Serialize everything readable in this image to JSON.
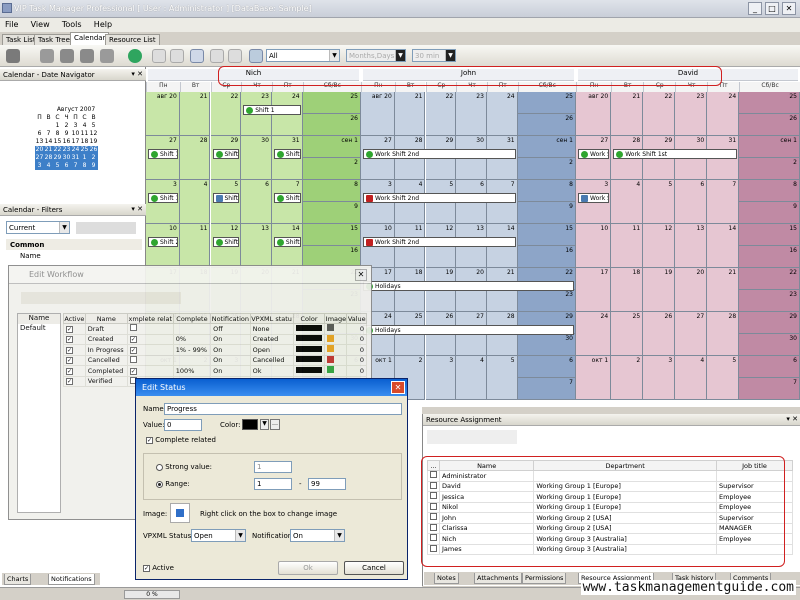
{
  "app": {
    "title": "VIP Task Manager Professional [ User : Administrator ] [DataBase: Sample]"
  },
  "menu": [
    "File",
    "View",
    "Tools",
    "Help"
  ],
  "doc_tabs": [
    "Task List",
    "Task Tree",
    "Calendar",
    "Resource List"
  ],
  "toolbar": {
    "filter_value": "All",
    "mode_value": "Months,Days",
    "interval_value": "30 min"
  },
  "left_pane": {
    "navigator_title": "Calendar - Date Navigator",
    "mini_calendar": {
      "month": "Август 2007",
      "weekdays": [
        "П",
        "В",
        "С",
        "Ч",
        "П",
        "С",
        "В"
      ],
      "weeks": [
        [
          "",
          "",
          "1",
          "2",
          "3",
          "4",
          "5"
        ],
        [
          "6",
          "7",
          "8",
          "9",
          "10",
          "11",
          "12"
        ],
        [
          "13",
          "14",
          "15",
          "16",
          "17",
          "18",
          "19"
        ],
        [
          "20",
          "21",
          "22",
          "23",
          "24",
          "25",
          "26"
        ],
        [
          "27",
          "28",
          "29",
          "30",
          "31",
          "1",
          "2"
        ],
        [
          "3",
          "4",
          "5",
          "6",
          "7",
          "8",
          "9"
        ]
      ]
    },
    "filters_title": "Calendar - Filters",
    "filter_select": "Current",
    "group_label": "Common",
    "group_item": "Name"
  },
  "calendar": {
    "resources": [
      "Nich",
      "John",
      "David"
    ],
    "day_headers": [
      "Пн",
      "Вт",
      "Ср",
      "Чт",
      "Пт",
      "Сб/Вс"
    ],
    "resource_colors": [
      "#c8e6a8",
      "#c6d2e2",
      "#e6c6d2"
    ],
    "weekend_colors": [
      "#9ed078",
      "#8da5c8",
      "#c08aa4"
    ],
    "rows": [
      [
        "авг 20",
        "21",
        "22",
        "23",
        "24",
        "25",
        "26"
      ],
      [
        "27",
        "28",
        "29",
        "30",
        "31",
        "сен 1",
        "2"
      ],
      [
        "3",
        "4",
        "5",
        "6",
        "7",
        "8",
        "9"
      ],
      [
        "10",
        "11",
        "12",
        "13",
        "14",
        "15",
        "16"
      ],
      [
        "17",
        "18",
        "19",
        "20",
        "21",
        "22",
        "23"
      ],
      [
        "24",
        "25",
        "26",
        "27",
        "28",
        "29",
        "30"
      ],
      [
        "окт 1",
        "2",
        "3",
        "4",
        "5",
        "6",
        "7"
      ]
    ],
    "shifts": {
      "shift1": "Shift 1",
      "shift2": "Shift 2",
      "shift3": "Shift 3",
      "work2": "Work Shift 2nd",
      "work1": "Work Shift 1st",
      "holidays": "Holidays"
    }
  },
  "workflow": {
    "title": "Edit Workflow",
    "name_col": "Name",
    "default_name": "Default",
    "columns": [
      "Active",
      "Name",
      "Complete related",
      "Complete",
      "Notification",
      "VPXML status",
      "Color",
      "Image",
      "Value"
    ],
    "col_labels": [
      "Active",
      "Name",
      "xmplete relat",
      "Complete",
      "Notification",
      "VPXML statu",
      "Color",
      "Image",
      "Value"
    ],
    "rows": [
      {
        "name": "Draft",
        "complete": "",
        "notification": "Off",
        "status": "None",
        "value": "0"
      },
      {
        "name": "Created",
        "complete": "0%",
        "notification": "On",
        "status": "Created",
        "value": "0"
      },
      {
        "name": "In Progress",
        "complete": "1% - 99%",
        "notification": "On",
        "status": "Open",
        "value": "0"
      },
      {
        "name": "Cancelled",
        "complete": "",
        "notification": "On",
        "status": "Cancelled",
        "value": "0"
      },
      {
        "name": "Completed",
        "complete": "100%",
        "notification": "On",
        "status": "Ok",
        "value": "0"
      },
      {
        "name": "Verified",
        "complete": "",
        "notification": "",
        "status": "",
        "value": ""
      }
    ]
  },
  "edit_status": {
    "title": "Edit Status",
    "name_label": "Name",
    "name_value": "Progress",
    "value_label": "Value:",
    "value_value": "0",
    "color_label": "Color:",
    "complete_related": "Complete related",
    "strong_value": "Strong value:",
    "strong_value_value": "1",
    "range_label": "Range:",
    "range_from": "1",
    "range_sep": "-",
    "range_to": "99",
    "image_label": "Image:",
    "image_hint": "Right click on the box to  change image",
    "vpxml_label": "VPXML Status:",
    "vpxml_value": "Open",
    "notification_label": "Notification:",
    "notification_value": "On",
    "active_label": "Active",
    "ok_label": "Ok",
    "cancel_label": "Cancel"
  },
  "resource_assignment": {
    "title": "Resource Assignment",
    "columns": [
      "Name",
      "Department",
      "Job title"
    ],
    "rows": [
      {
        "name": "Administrator",
        "dept": "",
        "job": ""
      },
      {
        "name": "David",
        "dept": "Working Group 1 [Europe]",
        "job": "Supervisor"
      },
      {
        "name": "Jessica",
        "dept": "Working Group 1 [Europe]",
        "job": "Employee"
      },
      {
        "name": "Nikol",
        "dept": "Working Group 1 [Europe]",
        "job": "Employee"
      },
      {
        "name": "John",
        "dept": "Working Group 2 [USA]",
        "job": "Supervisor"
      },
      {
        "name": "Clarissa",
        "dept": "Working Group 2 [USA]",
        "job": "MANAGER"
      },
      {
        "name": "Nich",
        "dept": "Working Group 3 [Australia]",
        "job": "Employee"
      },
      {
        "name": "James",
        "dept": "Working Group 3 [Australia]",
        "job": ""
      }
    ]
  },
  "bottom_tabs": [
    "Notes",
    "Attachments",
    "Permissions",
    "Resource Assignment",
    "Task history",
    "Comments"
  ],
  "left_bottom_tabs": [
    "Charts",
    "Notifications"
  ],
  "status": {
    "progress": "0 %"
  },
  "watermark": "www.taskmanagementguide.com"
}
